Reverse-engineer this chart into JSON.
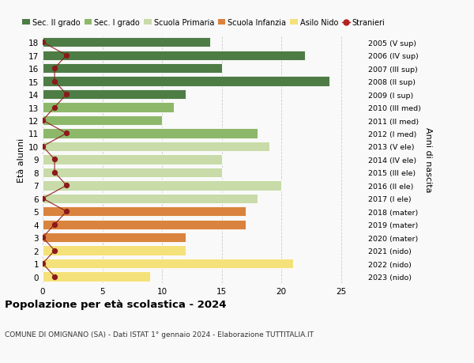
{
  "ages": [
    0,
    1,
    2,
    3,
    4,
    5,
    6,
    7,
    8,
    9,
    10,
    11,
    12,
    13,
    14,
    15,
    16,
    17,
    18
  ],
  "right_labels": [
    "2023 (nido)",
    "2022 (nido)",
    "2021 (nido)",
    "2020 (mater)",
    "2019 (mater)",
    "2018 (mater)",
    "2017 (I ele)",
    "2016 (II ele)",
    "2015 (III ele)",
    "2014 (IV ele)",
    "2013 (V ele)",
    "2012 (I med)",
    "2011 (II med)",
    "2010 (III med)",
    "2009 (I sup)",
    "2008 (II sup)",
    "2007 (III sup)",
    "2006 (IV sup)",
    "2005 (V sup)"
  ],
  "bar_values": [
    9,
    21,
    12,
    12,
    17,
    17,
    18,
    20,
    15,
    15,
    19,
    18,
    10,
    11,
    12,
    24,
    15,
    22,
    14
  ],
  "bar_colors": [
    "#f5e17a",
    "#f5e17a",
    "#f5e17a",
    "#d9833e",
    "#d9833e",
    "#d9833e",
    "#c8dba8",
    "#c8dba8",
    "#c8dba8",
    "#c8dba8",
    "#c8dba8",
    "#8db86a",
    "#8db86a",
    "#8db86a",
    "#4e7c45",
    "#4e7c45",
    "#4e7c45",
    "#4e7c45",
    "#4e7c45"
  ],
  "stranieri": [
    1,
    0,
    1,
    0,
    1,
    2,
    0,
    2,
    1,
    1,
    0,
    2,
    0,
    1,
    2,
    1,
    1,
    2,
    0
  ],
  "xlim": [
    0,
    27
  ],
  "ylim": [
    -0.5,
    18.5
  ],
  "title": "Popolazione per età scolastica - 2024",
  "subtitle": "COMUNE DI OMIGNANO (SA) - Dati ISTAT 1° gennaio 2024 - Elaborazione TUTTITALIA.IT",
  "ylabel_left": "Età alunni",
  "ylabel_right": "Anni di nascita",
  "legend_labels": [
    "Sec. II grado",
    "Sec. I grado",
    "Scuola Primaria",
    "Scuola Infanzia",
    "Asilo Nido",
    "Stranieri"
  ],
  "legend_colors": [
    "#4e7c45",
    "#8db86a",
    "#c8dba8",
    "#d9833e",
    "#f5e17a",
    "#b22222"
  ],
  "grid_color": "#cccccc",
  "background_color": "#f9f9f9"
}
